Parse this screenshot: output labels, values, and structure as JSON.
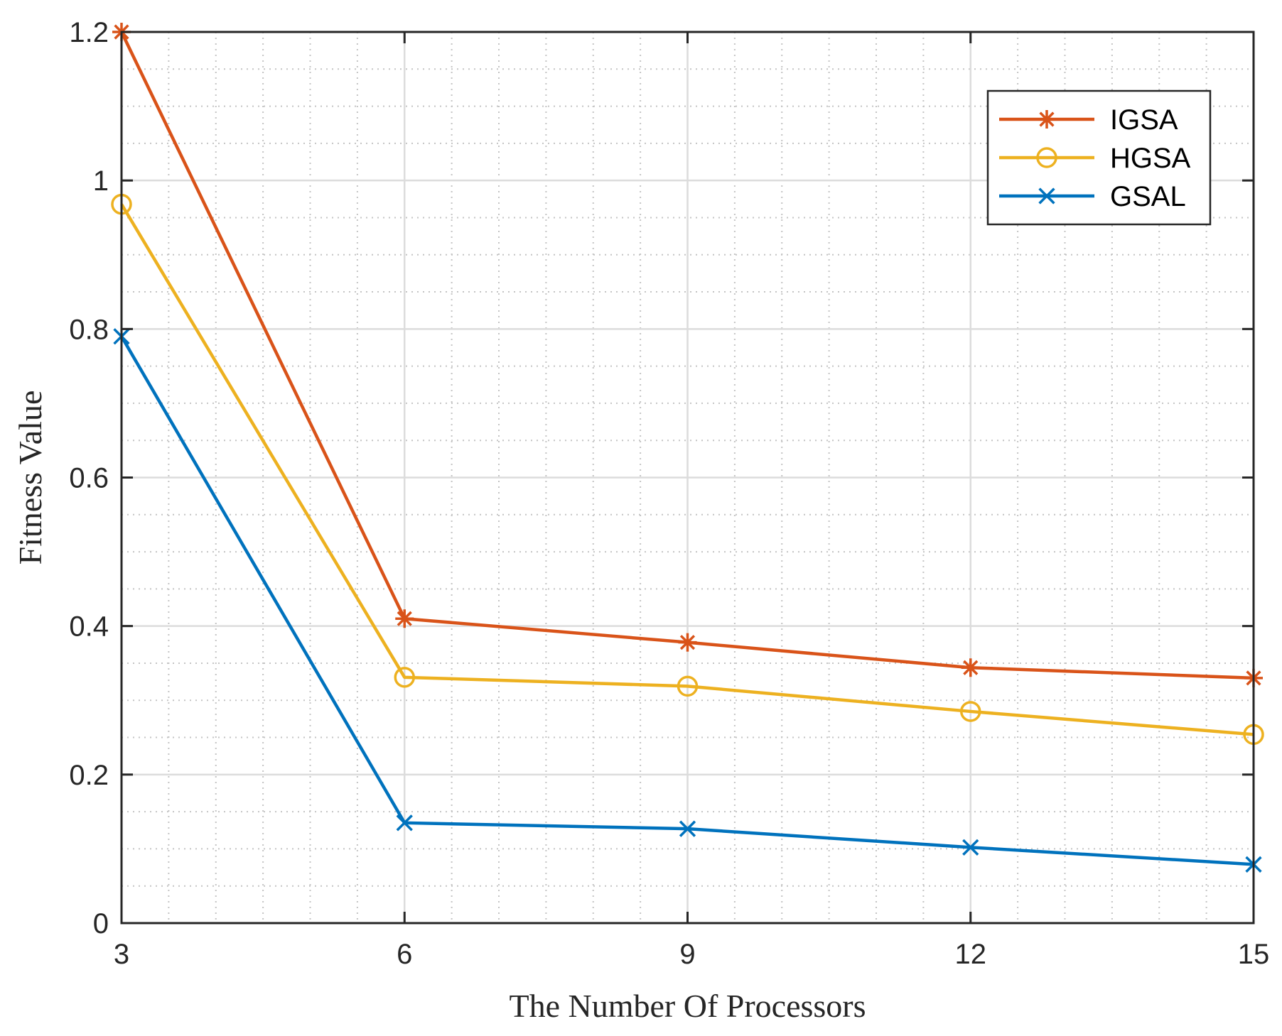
{
  "chart_data": {
    "type": "line",
    "title": "",
    "xlabel": "The Number Of Processors",
    "ylabel": "Fitness Value",
    "x": [
      3,
      6,
      9,
      12,
      15
    ],
    "xlim": [
      3,
      15
    ],
    "ylim": [
      0,
      1.2
    ],
    "xticks": [
      "3",
      "6",
      "9",
      "12",
      "15"
    ],
    "yticks": [
      "0",
      "0.2",
      "0.4",
      "0.6",
      "0.8",
      "1",
      "1.2"
    ],
    "grid": true,
    "minor_grid": true,
    "legend_position": "top-right",
    "series": [
      {
        "name": "IGSA",
        "values": [
          1.2,
          0.41,
          0.378,
          0.344,
          0.33
        ],
        "color": "#D95319",
        "marker": "asterisk"
      },
      {
        "name": "HGSA",
        "values": [
          0.968,
          0.331,
          0.319,
          0.285,
          0.254
        ],
        "color": "#EDB120",
        "marker": "circle"
      },
      {
        "name": "GSAL",
        "values": [
          0.79,
          0.135,
          0.127,
          0.102,
          0.079
        ],
        "color": "#0072BD",
        "marker": "x"
      }
    ]
  }
}
